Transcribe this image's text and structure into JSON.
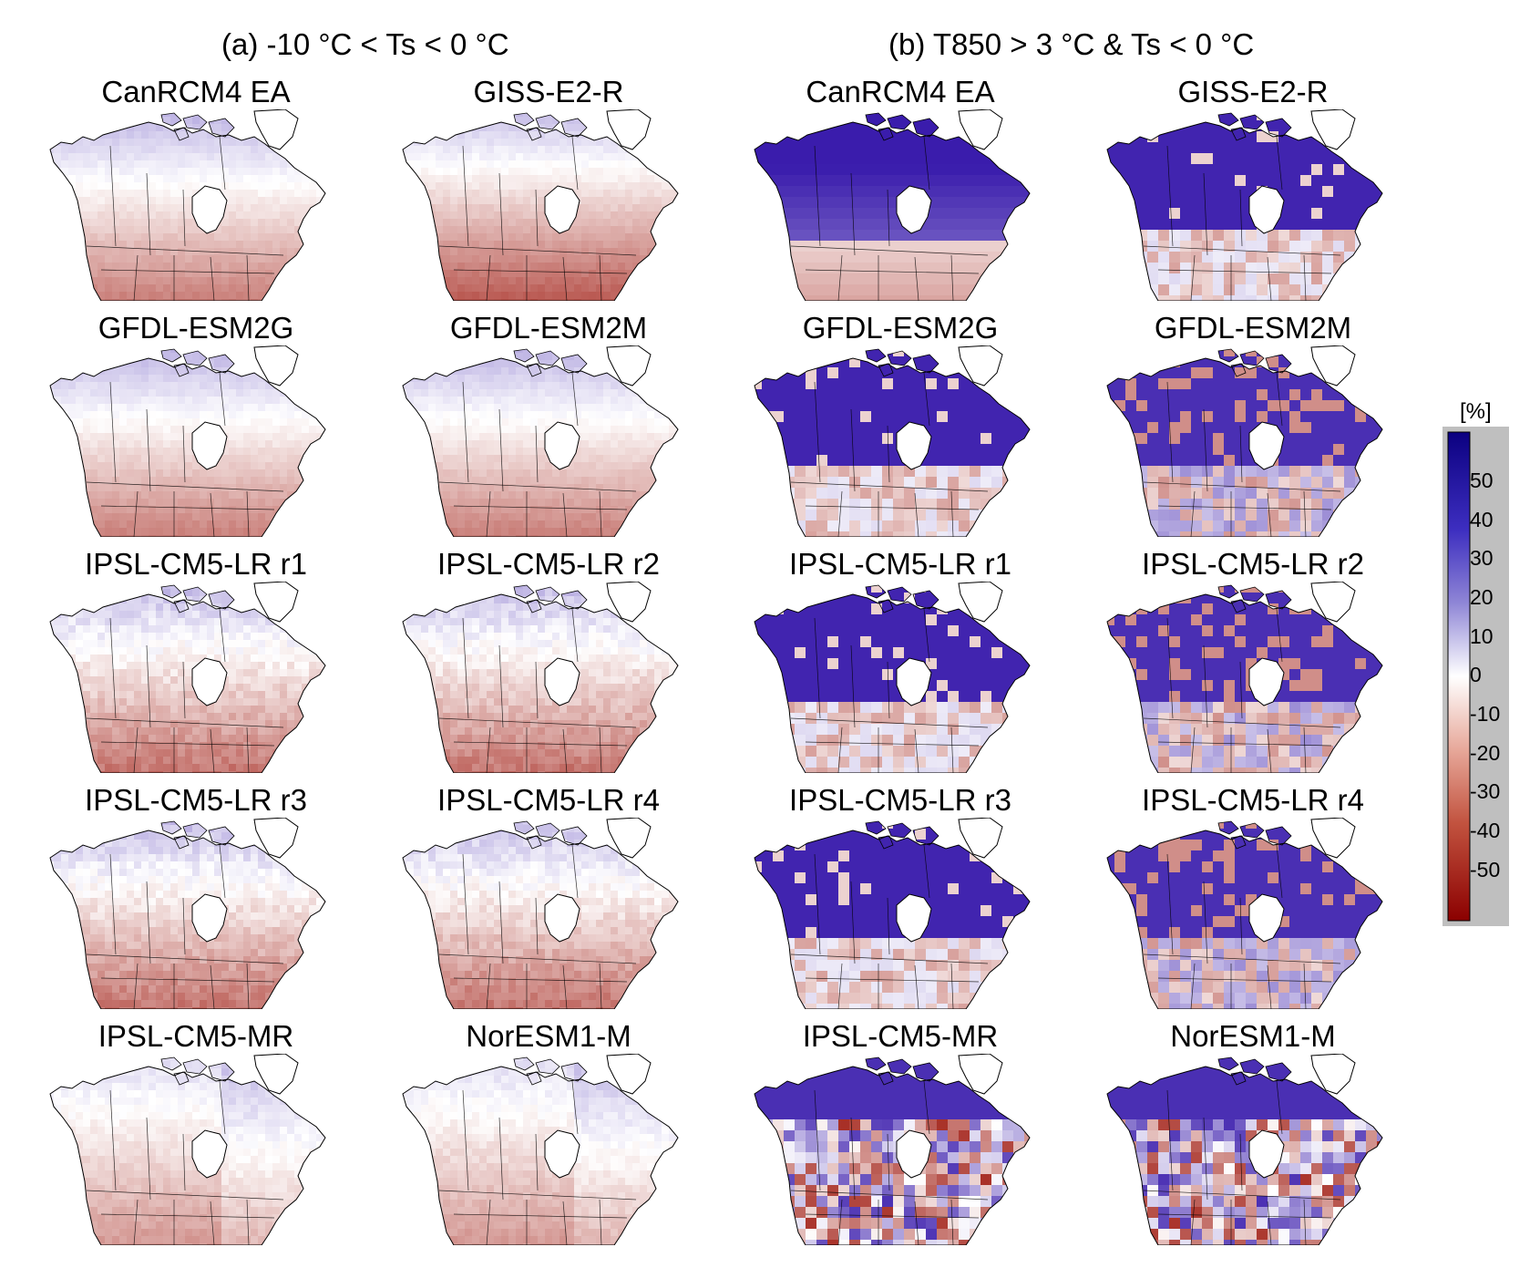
{
  "figure": {
    "section_a_title": "(a) -10 °C < Ts < 0 °C",
    "section_b_title": "(b) T850 > 3 °C & Ts < 0 °C"
  },
  "panels_a": [
    {
      "label": "CanRCM4 EA",
      "pattern": "a_smooth"
    },
    {
      "label": "GISS-E2-R",
      "pattern": "a_strong"
    },
    {
      "label": "GFDL-ESM2G",
      "pattern": "a_smooth"
    },
    {
      "label": "GFDL-ESM2M",
      "pattern": "a_smooth"
    },
    {
      "label": "IPSL-CM5-LR r1",
      "pattern": "a_blocky"
    },
    {
      "label": "IPSL-CM5-LR r2",
      "pattern": "a_blocky"
    },
    {
      "label": "IPSL-CM5-LR r3",
      "pattern": "a_blocky"
    },
    {
      "label": "IPSL-CM5-LR r4",
      "pattern": "a_blocky"
    },
    {
      "label": "IPSL-CM5-MR",
      "pattern": "a_weak"
    },
    {
      "label": "NorESM1-M",
      "pattern": "a_weak"
    }
  ],
  "panels_b": [
    {
      "label": "CanRCM4 EA",
      "pattern": "b_smooth"
    },
    {
      "label": "GISS-E2-R",
      "pattern": "b_blocky"
    },
    {
      "label": "GFDL-ESM2G",
      "pattern": "b_blocky"
    },
    {
      "label": "GFDL-ESM2M",
      "pattern": "b_mixed"
    },
    {
      "label": "IPSL-CM5-LR r1",
      "pattern": "b_blocky"
    },
    {
      "label": "IPSL-CM5-LR r2",
      "pattern": "b_mixed"
    },
    {
      "label": "IPSL-CM5-LR r3",
      "pattern": "b_blocky"
    },
    {
      "label": "IPSL-CM5-LR r4",
      "pattern": "b_mixed"
    },
    {
      "label": "IPSL-CM5-MR",
      "pattern": "b_noisy"
    },
    {
      "label": "NorESM1-M",
      "pattern": "b_noisy"
    }
  ],
  "colorbar": {
    "unit": "[%]",
    "min": -60,
    "max": 60,
    "ticks": [
      50,
      40,
      30,
      20,
      10,
      0,
      -10,
      -20,
      -30,
      -40,
      -50
    ],
    "tick_labels": [
      "50",
      "40",
      "30",
      "20",
      "10",
      "0",
      "-10",
      "-20",
      "-30",
      "-40",
      "-50"
    ],
    "color_max": "#0b0080",
    "color_mid": "#ffffff",
    "color_min": "#8b0000"
  }
}
